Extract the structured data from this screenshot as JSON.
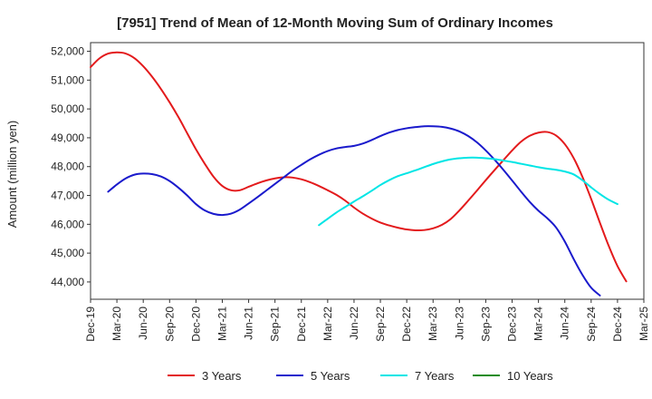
{
  "chart_data": {
    "type": "line",
    "title": "[7951]  Trend of Mean of 12-Month Moving Sum of Ordinary Incomes",
    "xlabel": "",
    "ylabel": "Amount (million yen)",
    "ylim": [
      43400,
      52300
    ],
    "yticks": [
      44000,
      45000,
      46000,
      47000,
      48000,
      49000,
      50000,
      51000,
      52000
    ],
    "ytick_labels": [
      "44,000",
      "45,000",
      "46,000",
      "47,000",
      "48,000",
      "49,000",
      "50,000",
      "51,000",
      "52,000"
    ],
    "x_start": "Dec-19",
    "x_months": 63,
    "xticks": [
      {
        "i": 0,
        "label": "Dec-19"
      },
      {
        "i": 3,
        "label": "Mar-20"
      },
      {
        "i": 6,
        "label": "Jun-20"
      },
      {
        "i": 9,
        "label": "Sep-20"
      },
      {
        "i": 12,
        "label": "Dec-20"
      },
      {
        "i": 15,
        "label": "Mar-21"
      },
      {
        "i": 18,
        "label": "Jun-21"
      },
      {
        "i": 21,
        "label": "Sep-21"
      },
      {
        "i": 24,
        "label": "Dec-21"
      },
      {
        "i": 27,
        "label": "Mar-22"
      },
      {
        "i": 30,
        "label": "Jun-22"
      },
      {
        "i": 33,
        "label": "Sep-22"
      },
      {
        "i": 36,
        "label": "Dec-22"
      },
      {
        "i": 39,
        "label": "Mar-23"
      },
      {
        "i": 42,
        "label": "Jun-23"
      },
      {
        "i": 45,
        "label": "Sep-23"
      },
      {
        "i": 48,
        "label": "Dec-23"
      },
      {
        "i": 51,
        "label": "Mar-24"
      },
      {
        "i": 54,
        "label": "Jun-24"
      },
      {
        "i": 57,
        "label": "Sep-24"
      },
      {
        "i": 60,
        "label": "Dec-24"
      },
      {
        "i": 63,
        "label": "Mar-25"
      }
    ],
    "grid": true,
    "legend_position": "bottom",
    "series": [
      {
        "name": "3 Years",
        "color": "#e31a1c",
        "start_index": 0,
        "values": [
          51450,
          51750,
          51920,
          51960,
          51920,
          51760,
          51480,
          51120,
          50700,
          50230,
          49720,
          49160,
          48600,
          48100,
          47650,
          47330,
          47180,
          47180,
          47300,
          47420,
          47520,
          47590,
          47630,
          47620,
          47560,
          47460,
          47330,
          47180,
          47020,
          46820,
          46580,
          46370,
          46200,
          46060,
          45960,
          45880,
          45820,
          45790,
          45800,
          45860,
          45980,
          46180,
          46480,
          46820,
          47170,
          47530,
          47880,
          48220,
          48560,
          48860,
          49070,
          49180,
          49200,
          49080,
          48780,
          48300,
          47650,
          46880,
          46050,
          45250,
          44550,
          44020
        ]
      },
      {
        "name": "5 Years",
        "color": "#1a1acc",
        "start_index": 2,
        "values": [
          47130,
          47380,
          47590,
          47720,
          47760,
          47740,
          47660,
          47500,
          47270,
          47000,
          46700,
          46480,
          46360,
          46320,
          46370,
          46510,
          46720,
          46940,
          47170,
          47400,
          47630,
          47860,
          48060,
          48250,
          48410,
          48540,
          48630,
          48680,
          48720,
          48800,
          48920,
          49060,
          49180,
          49270,
          49330,
          49370,
          49400,
          49400,
          49380,
          49320,
          49220,
          49060,
          48840,
          48560,
          48240,
          47890,
          47520,
          47140,
          46780,
          46470,
          46210,
          45890,
          45400,
          44800,
          44250,
          43800,
          43530
        ]
      },
      {
        "name": "7 Years",
        "color": "#00e5e5",
        "start_index": 26,
        "values": [
          45970,
          46190,
          46410,
          46600,
          46790,
          46970,
          47160,
          47360,
          47530,
          47670,
          47770,
          47870,
          47980,
          48090,
          48180,
          48250,
          48290,
          48310,
          48310,
          48290,
          48260,
          48210,
          48160,
          48100,
          48040,
          47980,
          47930,
          47890,
          47830,
          47730,
          47530,
          47280,
          47050,
          46850,
          46700
        ]
      },
      {
        "name": "10 Years",
        "color": "#1a8c1a",
        "start_index": 0,
        "values": []
      }
    ]
  }
}
